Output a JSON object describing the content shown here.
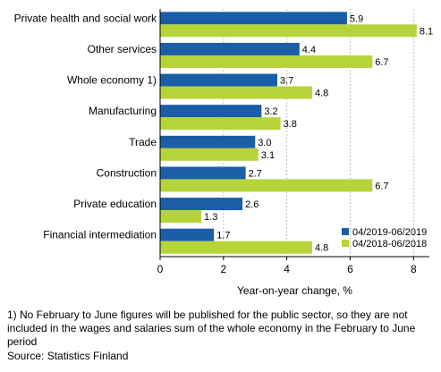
{
  "chart_data": {
    "type": "bar",
    "orientation": "horizontal",
    "categories": [
      "Private health and social work",
      "Other services",
      "Whole economy 1)",
      "Manufacturing",
      "Trade",
      "Construction",
      "Private education",
      "Financial intermediation"
    ],
    "series": [
      {
        "name": "04/2019-06/2019",
        "color": "#1a5ea8",
        "values": [
          5.9,
          4.4,
          3.7,
          3.2,
          3.0,
          2.7,
          2.6,
          1.7
        ]
      },
      {
        "name": "04/2018-06/2018",
        "color": "#b6d43a",
        "values": [
          8.1,
          6.7,
          4.8,
          3.8,
          3.1,
          6.7,
          1.3,
          4.8
        ]
      }
    ],
    "xlabel": "Year-on-year change, %",
    "xlim": [
      0,
      8.5
    ],
    "xticks": [
      0,
      2,
      4,
      6,
      8
    ],
    "grid": "vertical",
    "legend_position": "bottom-right"
  },
  "footnote": "1) No February to June figures will be published for the public sector, so they are not included in the wages and salaries sum of the whole economy in the February to June period",
  "source": "Source: Statistics Finland"
}
